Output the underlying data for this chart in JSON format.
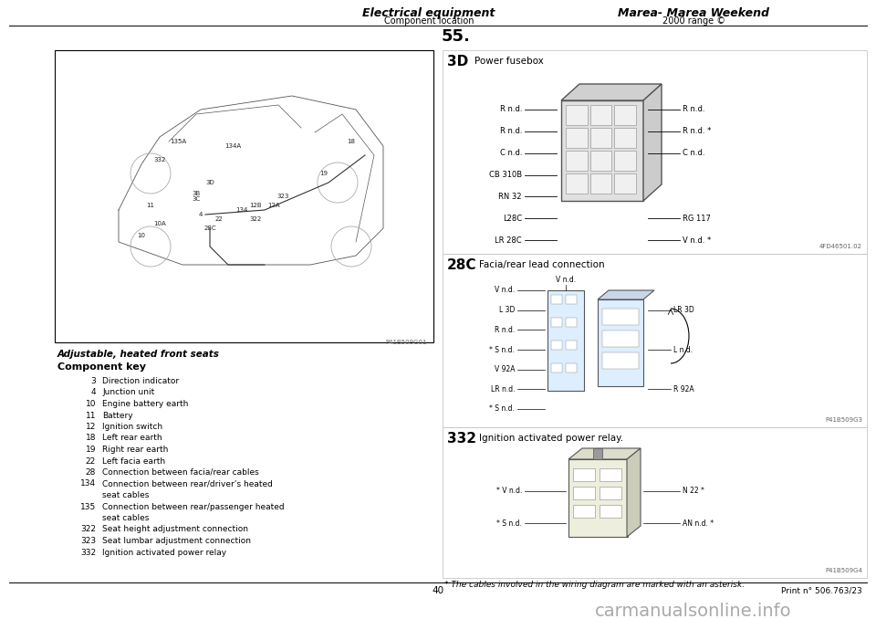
{
  "bg_color": "#ffffff",
  "header_title1": "Electrical equipment",
  "header_title2": "Marea- Marea Weekend",
  "header_sub1": "Component location",
  "header_sub2": "2000 range ©",
  "section_number": "55.",
  "page_number": "40",
  "print_ref": "Print n° 506.763/23",
  "watermark": "carmanualsonline.info",
  "caption_title": "Adjustable, heated front seats",
  "component_key_title": "Component key",
  "component_items": [
    [
      "3",
      "Direction indicator"
    ],
    [
      "4",
      "Junction unit"
    ],
    [
      "10",
      "Engine battery earth"
    ],
    [
      "11",
      "Battery"
    ],
    [
      "12",
      "Ignition switch"
    ],
    [
      "18",
      "Left rear earth"
    ],
    [
      "19",
      "Right rear earth"
    ],
    [
      "22",
      "Left facia earth"
    ],
    [
      "28",
      "Connection between facia/rear cables"
    ],
    [
      "134",
      "Connection between rear/driver’s heated"
    ],
    [
      "",
      "seat cables"
    ],
    [
      "135",
      "Connection between rear/passenger heated"
    ],
    [
      "",
      "seat cables"
    ],
    [
      "322",
      "Seat height adjustment connection"
    ],
    [
      "323",
      "Seat lumbar adjustment connection"
    ],
    [
      "332",
      "Ignition activated power relay"
    ]
  ],
  "footnote": "* The cables involved in the wiring diagram are marked with an asterisk.",
  "diagram_3D_label": "3D",
  "diagram_3D_title": "Power fusebox",
  "diagram_3D_ref": "4FD46501.02",
  "diagram_3D_left_labels": [
    "R n.d.",
    "R n.d.",
    "C n.d.",
    "CB 310B",
    "RN 32",
    "L28C",
    "LR 28C"
  ],
  "diagram_3D_right_labels": [
    "R n.d.",
    "R n.d. *",
    "C n.d.",
    "",
    "",
    "RG 117",
    "V n.d. *"
  ],
  "diagram_28C_label": "28C",
  "diagram_28C_title": "Facia/rear lead connection",
  "diagram_28C_ref": "P41B509G3",
  "diagram_28C_left_labels": [
    "V n.d.",
    "L 3D",
    "R n.d.",
    "* S n.d.",
    "V 92A",
    "LR n.d.",
    "* S n.d."
  ],
  "diagram_28C_right_labels": [
    "",
    "LR 3D",
    "",
    "L n.d.",
    "",
    "R 92A",
    ""
  ],
  "diagram_332_label": "332",
  "diagram_332_title": "Ignition activated power relay.",
  "diagram_332_ref": "P41B509G4",
  "diagram_332_left_labels": [
    "* V n.d.",
    "* S n.d."
  ],
  "diagram_332_right_labels": [
    "N 22 *",
    "AN n.d. *"
  ]
}
